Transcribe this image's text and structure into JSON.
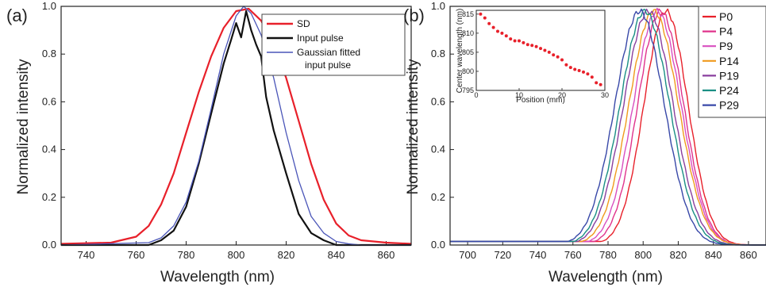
{
  "chart_data": [
    {
      "panel": "(a)",
      "type": "line",
      "xlabel": "Wavelength (nm)",
      "ylabel": "Normalized intensity",
      "xlim": [
        730,
        870
      ],
      "ylim": [
        0,
        1.0
      ],
      "xticks": [
        "740",
        "760",
        "780",
        "800",
        "820",
        "840",
        "860"
      ],
      "yticks": [
        "0.0",
        "0.2",
        "0.4",
        "0.6",
        "0.8",
        "1.0"
      ],
      "legend": "top-right",
      "series": [
        {
          "name": "SD",
          "color": "#e8202a",
          "x": [
            730,
            750,
            760,
            765,
            770,
            775,
            780,
            785,
            790,
            795,
            800,
            805,
            810,
            815,
            820,
            825,
            830,
            835,
            840,
            845,
            850,
            860,
            870
          ],
          "y": [
            0.005,
            0.01,
            0.035,
            0.08,
            0.17,
            0.3,
            0.47,
            0.64,
            0.79,
            0.91,
            0.98,
            0.99,
            0.94,
            0.84,
            0.7,
            0.52,
            0.34,
            0.19,
            0.09,
            0.04,
            0.02,
            0.01,
            0.005
          ]
        },
        {
          "name": "Input pulse",
          "color": "#111111",
          "x": [
            730,
            765,
            770,
            775,
            780,
            785,
            790,
            795,
            798,
            800,
            802,
            804,
            806,
            808,
            810,
            812,
            815,
            820,
            825,
            830,
            835,
            840,
            850,
            870
          ],
          "y": [
            0.0,
            0.0,
            0.02,
            0.06,
            0.16,
            0.34,
            0.55,
            0.76,
            0.86,
            0.93,
            0.87,
            0.98,
            0.9,
            0.84,
            0.79,
            0.62,
            0.48,
            0.3,
            0.13,
            0.05,
            0.02,
            0.0,
            0.0,
            0.0
          ]
        },
        {
          "name": "Gaussian fitted input pulse",
          "color": "#4a55b8",
          "x": [
            730,
            765,
            770,
            775,
            780,
            785,
            790,
            795,
            800,
            803,
            806,
            810,
            815,
            820,
            825,
            830,
            835,
            840,
            845,
            850,
            870
          ],
          "y": [
            0.0,
            0.01,
            0.03,
            0.08,
            0.18,
            0.35,
            0.57,
            0.8,
            0.96,
            1.0,
            0.97,
            0.88,
            0.7,
            0.47,
            0.27,
            0.12,
            0.05,
            0.015,
            0.005,
            0.0,
            0.0
          ]
        }
      ]
    },
    {
      "panel": "(b)",
      "type": "line",
      "xlabel": "Wavelength (nm)",
      "ylabel": "Normalized intensity",
      "xlim": [
        690,
        870
      ],
      "ylim": [
        0,
        1.0
      ],
      "xticks": [
        "700",
        "720",
        "740",
        "760",
        "780",
        "800",
        "820",
        "840",
        "860"
      ],
      "yticks": [
        "0.0",
        "0.2",
        "0.4",
        "0.6",
        "0.8",
        "1.0"
      ],
      "legend": "top-right",
      "series": [
        {
          "name": "P0",
          "color": "#e8202a",
          "center": 813,
          "width": 12.5
        },
        {
          "name": "P4",
          "color": "#e0338c",
          "center": 810,
          "width": 13
        },
        {
          "name": "P9",
          "color": "#d84fc0",
          "center": 808,
          "width": 13.5
        },
        {
          "name": "P14",
          "color": "#f09a1c",
          "center": 806,
          "width": 14
        },
        {
          "name": "P19",
          "color": "#8a3f9e",
          "center": 803,
          "width": 14
        },
        {
          "name": "P24",
          "color": "#1a8f84",
          "center": 801,
          "width": 14
        },
        {
          "name": "P29",
          "color": "#3848a8",
          "center": 798,
          "width": 14
        }
      ],
      "inset": {
        "type": "scatter",
        "xlabel": "Position (mm)",
        "ylabel": "Center wavelength (nm)",
        "xlim": [
          0,
          30
        ],
        "ylim": [
          795,
          816
        ],
        "xticks": [
          "0",
          "10",
          "20",
          "30"
        ],
        "yticks": [
          "795",
          "800",
          "805",
          "810",
          "815"
        ],
        "color": "#e8202a",
        "x": [
          1,
          2,
          3,
          4,
          5,
          6,
          7,
          8,
          9,
          10,
          11,
          12,
          13,
          14,
          15,
          16,
          17,
          18,
          19,
          20,
          21,
          22,
          23,
          24,
          25,
          26,
          27,
          28,
          29
        ],
        "y": [
          815,
          814,
          812.5,
          811.5,
          810.5,
          810,
          809.3,
          808.5,
          808,
          808,
          807.5,
          807,
          806.8,
          806.5,
          806,
          805.5,
          805,
          804.3,
          803.8,
          803,
          801.7,
          801,
          800.5,
          800.2,
          799.8,
          799.3,
          798.5,
          797,
          796.5
        ]
      }
    }
  ],
  "labels": {
    "panel_a": "(a)",
    "panel_b": "(b)",
    "legend_a": [
      "SD",
      "Input pulse",
      "Gaussian fitted",
      "input pulse"
    ]
  }
}
